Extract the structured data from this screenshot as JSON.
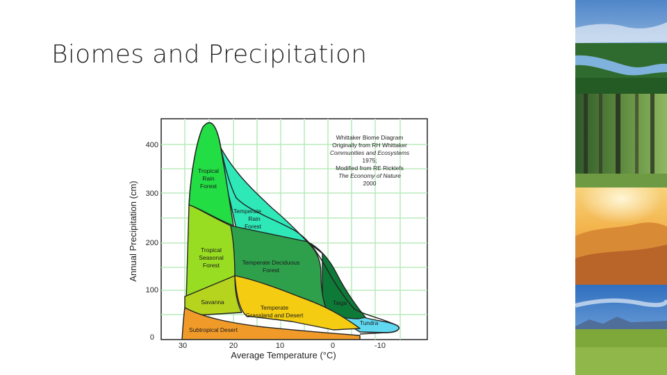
{
  "slide": {
    "title": "Biomes and Precipitation"
  },
  "diagram": {
    "ylabel": "Annual Precipitation (cm)",
    "xlabel": "Average Temperature (°C)",
    "y_ticks": [
      "400",
      "300",
      "200",
      "100",
      "0"
    ],
    "x_ticks": [
      "30",
      "20",
      "10",
      "0",
      "-10"
    ],
    "credit": {
      "line1": "Whittaker Biome Diagram",
      "line2": "Originally from RH Whittaker",
      "line3": "Communities and Ecosystems",
      "line4": "1975;",
      "line5": "Modified from RE Ricklefs",
      "line6": "The Economy of Nature",
      "line7": "2000"
    },
    "biomes": {
      "tropical_rain_forest": [
        "Tropical",
        "Rain",
        "Forest"
      ],
      "temperate_rain_forest": [
        "Temperate",
        "Rain",
        "Forest"
      ],
      "tropical_seasonal_forest": [
        "Tropical",
        "Seasonal",
        "Forest"
      ],
      "temperate_deciduous_forest": [
        "Temperate Deciduous",
        "Forest"
      ],
      "savanna": "Savanna",
      "temperate_grassland": [
        "Temperate",
        "Grassland and Desert"
      ],
      "taiga": "Taiga",
      "tundra": "Tundra",
      "subtropical_desert": "Subtropical Desert"
    },
    "colors": {
      "tropical_rain_forest": "#22dd44",
      "temperate_rain_forest": "#2ee8b8",
      "tropical_seasonal_forest": "#99dd22",
      "temperate_deciduous_forest": "#2ea04c",
      "savanna": "#b6d41e",
      "temperate_grassland": "#f4cc12",
      "taiga": "#0e7a38",
      "tundra": "#5fd8f0",
      "subtropical_desert": "#f09a2a",
      "grid": "#b9ecbb"
    }
  },
  "photo_strip": [
    "forest-river-lake-photo",
    "tall-forest-photo",
    "sand-dunes-desert-photo",
    "grassland-mountains-photo"
  ]
}
